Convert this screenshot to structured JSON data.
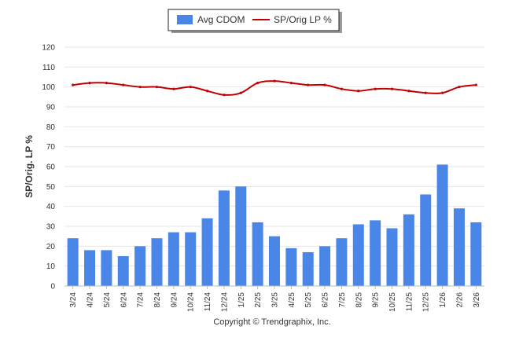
{
  "chart_data": {
    "type": "bar",
    "categories": [
      "3/24",
      "4/24",
      "5/24",
      "6/24",
      "7/24",
      "8/24",
      "9/24",
      "10/24",
      "11/24",
      "12/24",
      "1/25",
      "2/25",
      "3/25",
      "4/25",
      "5/25",
      "6/25",
      "7/25",
      "8/25",
      "9/25",
      "10/25",
      "11/25",
      "12/25",
      "1/26",
      "2/26",
      "3/26"
    ],
    "series": [
      {
        "name": "Avg CDOM",
        "type": "bar",
        "color": "#4a86e8",
        "values": [
          24,
          18,
          18,
          15,
          20,
          24,
          27,
          27,
          34,
          48,
          50,
          32,
          25,
          19,
          17,
          20,
          24,
          31,
          33,
          29,
          36,
          46,
          61,
          39,
          32
        ]
      },
      {
        "name": "SP/Orig LP %",
        "type": "line",
        "color": "#c00000",
        "values": [
          101,
          102,
          102,
          101,
          100,
          100,
          99,
          100,
          98,
          96,
          97,
          102,
          103,
          102,
          101,
          101,
          99,
          98,
          99,
          99,
          98,
          97,
          97,
          100,
          101
        ]
      }
    ],
    "title": "",
    "xlabel": "",
    "ylabel": "SP/Orig. LP %",
    "ylim": [
      0,
      120
    ],
    "yticks": [
      0,
      10,
      20,
      30,
      40,
      50,
      60,
      70,
      80,
      90,
      100,
      110,
      120
    ],
    "grid": true,
    "legend_position": "top-center"
  },
  "credit": "Copyright © Trendgraphix, Inc."
}
